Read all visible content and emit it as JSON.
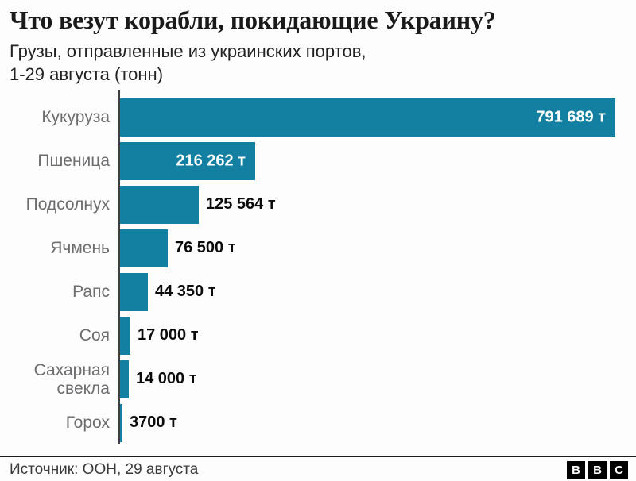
{
  "header": {
    "title": "Что везут корабли, покидающие Украину?",
    "subtitle_line1": "Грузы, отправленные из украинских портов,",
    "subtitle_line2": "1-29 августа (тонн)"
  },
  "chart_data": {
    "type": "bar",
    "orientation": "horizontal",
    "title": "Что везут корабли, покидающие Украину?",
    "subtitle": "Грузы, отправленные из украинских портов, 1-29 августа (тонн)",
    "unit": "т",
    "categories": [
      "Кукуруза",
      "Пшеница",
      "Подсолнух",
      "Ячмень",
      "Рапс",
      "Соя",
      "Сахарная свекла",
      "Горох"
    ],
    "values": [
      791689,
      216262,
      125564,
      76500,
      44350,
      17000,
      14000,
      3700
    ],
    "value_labels": [
      "791 689 т",
      "216 262 т",
      "125 564 т",
      "76 500 т",
      "44 350 т",
      "17 000 т",
      "14 000 т",
      "3700 т"
    ],
    "value_label_inside": [
      true,
      true,
      false,
      false,
      false,
      false,
      false,
      false
    ],
    "xlim": [
      0,
      791689
    ],
    "grid": false,
    "legend": "none",
    "bar_color": "#1380a1",
    "category_label_color": "#6d6d70",
    "value_color_inside": "#ffffff",
    "value_color_outside": "#0b0b0b",
    "axis_color": "#3f3f42"
  },
  "footer": {
    "source": "Источник: ООН, 29 августа",
    "logo_letters": [
      "B",
      "B",
      "C"
    ]
  }
}
